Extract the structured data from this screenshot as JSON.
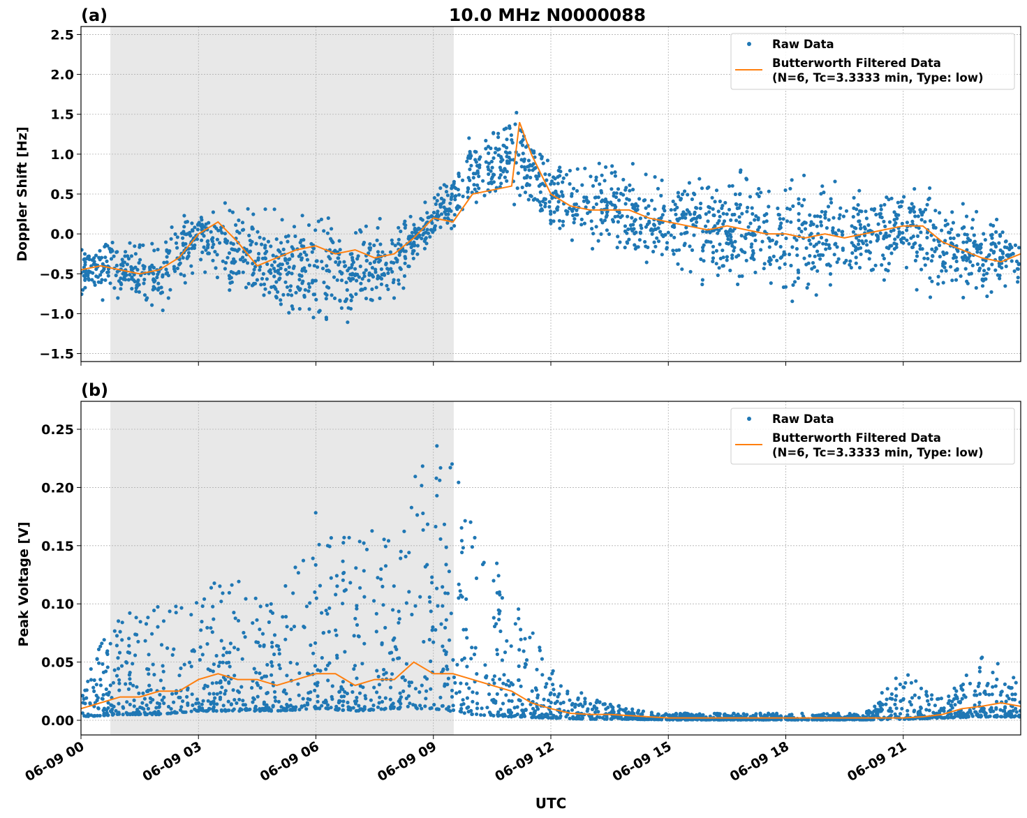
{
  "title": "10.0 MHz N0000088",
  "xlabel": "UTC",
  "x_tick_labels": [
    "06-09 00",
    "06-09 03",
    "06-09 06",
    "06-09 09",
    "06-09 12",
    "06-09 15",
    "06-09 18",
    "06-09 21"
  ],
  "x_tick_hours": [
    0,
    3,
    6,
    9,
    12,
    15,
    18,
    21
  ],
  "xlim_hours": [
    0,
    24
  ],
  "shaded_interval_hours": [
    0.75,
    9.52
  ],
  "colors": {
    "raw": "#1f77b4",
    "filtered": "#ff7f0e",
    "shade": "#e8e8e8"
  },
  "chart_data": [
    {
      "type": "scatter",
      "panel_label": "(a)",
      "ylabel": "Doppler Shift [Hz]",
      "ylim": [
        -1.6,
        2.6
      ],
      "y_ticks": [
        -1.5,
        -1.0,
        -0.5,
        0.0,
        0.5,
        1.0,
        1.5,
        2.0,
        2.5
      ],
      "y_tick_labels": [
        "−1.5",
        "−1.0",
        "−0.5",
        "0.0",
        "0.5",
        "1.0",
        "1.5",
        "2.0",
        "2.5"
      ],
      "grid": true,
      "legend": {
        "position": "top-right",
        "entries": [
          "Raw Data",
          "Butterworth Filtered Data",
          "(N=6, Tc=3.3333 min, Type: low)"
        ]
      },
      "series": [
        {
          "name": "Raw Data",
          "kind": "points",
          "hours": [
            0,
            1,
            2,
            3,
            4,
            5,
            6,
            7,
            8,
            9,
            10,
            11,
            12,
            13,
            14,
            15,
            16,
            17,
            18,
            19,
            20,
            21,
            22,
            23,
            24
          ],
          "range_min": [
            -0.8,
            -0.9,
            -1.1,
            -0.4,
            -1.0,
            -1.1,
            -1.3,
            -1.2,
            -0.9,
            -0.1,
            0.2,
            0.3,
            -0.1,
            -0.2,
            -0.4,
            -0.6,
            -0.7,
            -0.8,
            -0.9,
            -0.8,
            -0.7,
            -0.6,
            -0.9,
            -0.9,
            -0.7
          ],
          "range_max": [
            0.05,
            0.0,
            0.1,
            0.45,
            0.5,
            0.3,
            0.35,
            0.3,
            0.15,
            0.5,
            1.3,
            1.7,
            1.0,
            0.9,
            0.9,
            0.8,
            0.9,
            0.9,
            0.8,
            0.7,
            0.7,
            0.8,
            0.5,
            0.4,
            0.1
          ]
        },
        {
          "name": "Butterworth Filtered Data",
          "kind": "line",
          "hours": [
            0,
            0.5,
            1,
            1.5,
            2,
            2.5,
            3,
            3.5,
            4,
            4.5,
            5,
            5.5,
            6,
            6.5,
            7,
            7.5,
            8,
            8.5,
            9,
            9.5,
            10,
            10.5,
            11,
            11.2,
            11.5,
            12,
            12.5,
            13,
            13.5,
            14,
            14.5,
            15,
            15.5,
            16,
            16.5,
            17,
            17.5,
            18,
            18.5,
            19,
            19.5,
            20,
            20.5,
            21,
            21.5,
            22,
            22.5,
            23,
            23.5,
            24
          ],
          "values": [
            -0.45,
            -0.4,
            -0.45,
            -0.5,
            -0.45,
            -0.3,
            0.0,
            0.15,
            -0.1,
            -0.4,
            -0.3,
            -0.2,
            -0.15,
            -0.25,
            -0.2,
            -0.3,
            -0.25,
            -0.05,
            0.2,
            0.15,
            0.5,
            0.55,
            0.6,
            1.4,
            1.0,
            0.5,
            0.35,
            0.3,
            0.3,
            0.3,
            0.2,
            0.15,
            0.1,
            0.05,
            0.1,
            0.05,
            0.0,
            0.0,
            -0.05,
            0.0,
            -0.05,
            0.0,
            0.05,
            0.1,
            0.1,
            -0.1,
            -0.2,
            -0.3,
            -0.35,
            -0.25
          ]
        }
      ]
    },
    {
      "type": "scatter",
      "panel_label": "(b)",
      "ylabel": "Peak Voltage [V]",
      "ylim": [
        -0.0126,
        0.274
      ],
      "y_ticks": [
        0.0,
        0.05,
        0.1,
        0.15,
        0.2,
        0.25
      ],
      "y_tick_labels": [
        "0.00",
        "0.05",
        "0.10",
        "0.15",
        "0.20",
        "0.25"
      ],
      "grid": true,
      "legend": {
        "position": "top-right",
        "entries": [
          "Raw Data",
          "Butterworth Filtered Data",
          "(N=6, Tc=3.3333 min, Type: low)"
        ]
      },
      "series": [
        {
          "name": "Raw Data",
          "kind": "points",
          "hours": [
            0,
            1,
            2,
            3,
            4,
            5,
            6,
            7,
            8,
            9,
            10,
            11,
            12,
            13,
            14,
            15,
            16,
            17,
            18,
            19,
            20,
            21,
            22,
            23,
            24
          ],
          "range_min": [
            0.003,
            0.005,
            0.005,
            0.008,
            0.008,
            0.008,
            0.01,
            0.008,
            0.01,
            0.01,
            0.005,
            0.003,
            0.002,
            0.001,
            0.001,
            0.0005,
            0.0005,
            0.0005,
            0.0005,
            0.0005,
            0.0005,
            0.001,
            0.002,
            0.003,
            0.003
          ],
          "range_max": [
            0.04,
            0.09,
            0.1,
            0.12,
            0.12,
            0.1,
            0.18,
            0.16,
            0.17,
            0.26,
            0.19,
            0.11,
            0.045,
            0.02,
            0.01,
            0.006,
            0.006,
            0.006,
            0.006,
            0.006,
            0.006,
            0.045,
            0.02,
            0.055,
            0.04
          ]
        },
        {
          "name": "Butterworth Filtered Data",
          "kind": "line",
          "hours": [
            0,
            0.5,
            1,
            1.5,
            2,
            2.5,
            3,
            3.5,
            4,
            4.5,
            5,
            5.5,
            6,
            6.5,
            7,
            7.5,
            8,
            8.5,
            9,
            9.5,
            10,
            10.5,
            11,
            11.5,
            12,
            12.5,
            13,
            13.5,
            14,
            14.5,
            15,
            16,
            17,
            18,
            19,
            20,
            21,
            21.5,
            22,
            22.5,
            23,
            23.5,
            24
          ],
          "values": [
            0.01,
            0.015,
            0.02,
            0.02,
            0.025,
            0.025,
            0.035,
            0.04,
            0.035,
            0.035,
            0.03,
            0.035,
            0.04,
            0.04,
            0.03,
            0.035,
            0.035,
            0.05,
            0.04,
            0.04,
            0.035,
            0.03,
            0.025,
            0.015,
            0.01,
            0.006,
            0.005,
            0.005,
            0.004,
            0.003,
            0.002,
            0.002,
            0.002,
            0.002,
            0.002,
            0.002,
            0.002,
            0.003,
            0.005,
            0.01,
            0.012,
            0.015,
            0.012
          ]
        }
      ]
    }
  ]
}
